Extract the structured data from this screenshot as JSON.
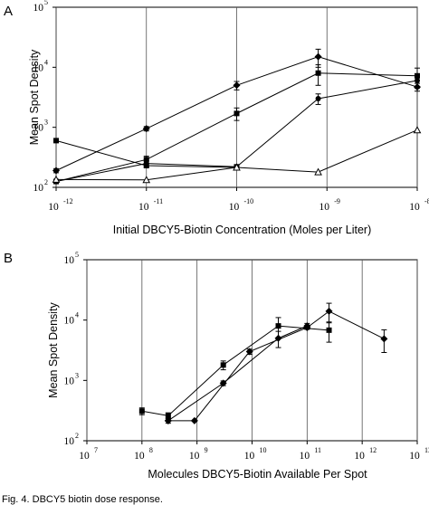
{
  "figure": {
    "caption": "Fig. 4. DBCY5 biotin dose response."
  },
  "chart_data": [
    {
      "panel": "A",
      "type": "line",
      "xlabel": "Initial DBCY5-Biotin Concentration (Moles per Liter)",
      "ylabel": "Mean Spot Density",
      "xscale": "log",
      "yscale": "log",
      "xlim": [
        1e-12,
        1e-08
      ],
      "ylim": [
        100,
        100000
      ],
      "x_ticks": [
        {
          "base": "10",
          "exp": "-12",
          "value": 1e-12
        },
        {
          "base": "10",
          "exp": "-11",
          "value": 1e-11
        },
        {
          "base": "10",
          "exp": "-10",
          "value": 1e-10
        },
        {
          "base": "10",
          "exp": "-9",
          "value": 1e-09
        },
        {
          "base": "10",
          "exp": "-8",
          "value": 1e-08
        }
      ],
      "y_ticks": [
        {
          "base": "10",
          "exp": "2",
          "value": 100
        },
        {
          "base": "10",
          "exp": "3",
          "value": 1000
        },
        {
          "base": "10",
          "exp": "4",
          "value": 10000
        },
        {
          "base": "10",
          "exp": "5",
          "value": 100000
        }
      ],
      "grid": "vertical lines at each decade",
      "series": [
        {
          "marker": "diamond",
          "points": [
            {
              "x": 1e-12,
              "y": 190,
              "err": 15
            },
            {
              "x": 1e-11,
              "y": 950,
              "err": 80
            },
            {
              "x": 1e-10,
              "y": 5000,
              "err": 800
            },
            {
              "x": 8e-10,
              "y": 15000,
              "err": 5000
            },
            {
              "x": 1e-08,
              "y": 4700,
              "err": 700
            }
          ]
        },
        {
          "marker": "square",
          "points": [
            {
              "x": 1e-12,
              "y": 125,
              "err": 10
            },
            {
              "x": 1e-11,
              "y": 290,
              "err": 40
            },
            {
              "x": 1e-10,
              "y": 1700,
              "err": 400
            },
            {
              "x": 8e-10,
              "y": 8000,
              "err": 3000
            },
            {
              "x": 1e-08,
              "y": 7200,
              "err": 2500
            }
          ]
        },
        {
          "marker": "circle",
          "points": [
            {
              "x": 1e-12,
              "y": 125,
              "err": 10
            },
            {
              "x": 1e-11,
              "y": 250,
              "err": 30
            },
            {
              "x": 1e-10,
              "y": 220,
              "err": 20
            },
            {
              "x": 8e-10,
              "y": 3000,
              "err": 600
            },
            {
              "x": 1e-08,
              "y": 6000,
              "err": 1500
            }
          ]
        },
        {
          "marker": "square",
          "points": [
            {
              "x": 1e-12,
              "y": 600,
              "err": 0
            },
            {
              "x": 1e-11,
              "y": 230,
              "err": 0
            },
            {
              "x": 1e-10,
              "y": 215,
              "err": 0
            }
          ]
        },
        {
          "marker": "triangle",
          "points": [
            {
              "x": 1e-12,
              "y": 135,
              "err": 0
            },
            {
              "x": 1e-11,
              "y": 133,
              "err": 0
            },
            {
              "x": 1e-10,
              "y": 215,
              "err": 0
            },
            {
              "x": 8e-10,
              "y": 180,
              "err": 0
            },
            {
              "x": 1e-08,
              "y": 900,
              "err": 0
            }
          ]
        }
      ]
    },
    {
      "panel": "B",
      "type": "line",
      "xlabel": "Molecules DBCY5-Biotin Available Per Spot",
      "ylabel": "Mean Spot Density",
      "xscale": "log",
      "yscale": "log",
      "xlim": [
        10000000.0,
        10000000000000.0
      ],
      "ylim": [
        100,
        100000
      ],
      "x_ticks": [
        {
          "base": "10",
          "exp": "7",
          "value": 10000000.0
        },
        {
          "base": "10",
          "exp": "8",
          "value": 100000000.0
        },
        {
          "base": "10",
          "exp": "9",
          "value": 1000000000.0
        },
        {
          "base": "10",
          "exp": "10",
          "value": 10000000000.0
        },
        {
          "base": "10",
          "exp": "11",
          "value": 100000000000.0
        },
        {
          "base": "10",
          "exp": "12",
          "value": 1000000000000.0
        },
        {
          "base": "10",
          "exp": "13",
          "value": 10000000000000.0
        }
      ],
      "y_ticks": [
        {
          "base": "10",
          "exp": "2",
          "value": 100
        },
        {
          "base": "10",
          "exp": "3",
          "value": 1000
        },
        {
          "base": "10",
          "exp": "4",
          "value": 10000
        },
        {
          "base": "10",
          "exp": "5",
          "value": 100000
        }
      ],
      "grid": "vertical lines at each decade",
      "series": [
        {
          "marker": "square",
          "points": [
            {
              "x": 100000000.0,
              "y": 310,
              "err": 40
            },
            {
              "x": 300000000.0,
              "y": 260,
              "err": 30
            },
            {
              "x": 3000000000.0,
              "y": 1800,
              "err": 300
            },
            {
              "x": 30000000000.0,
              "y": 8000,
              "err": 3000
            },
            {
              "x": 250000000000.0,
              "y": 6800,
              "err": 2500
            }
          ]
        },
        {
          "marker": "diamond",
          "points": [
            {
              "x": 300000000.0,
              "y": 215,
              "err": 20
            },
            {
              "x": 900000000.0,
              "y": 215,
              "err": 0
            },
            {
              "x": 9000000000.0,
              "y": 3000,
              "err": 300
            },
            {
              "x": 100000000000.0,
              "y": 7500,
              "err": 500
            },
            {
              "x": 250000000000.0,
              "y": 14000,
              "err": 5000
            },
            {
              "x": 2500000000000.0,
              "y": 4900,
              "err": 2000
            }
          ]
        },
        {
          "marker": "diamond",
          "points": [
            {
              "x": 300000000.0,
              "y": 215,
              "err": 0
            },
            {
              "x": 3000000000.0,
              "y": 900,
              "err": 80
            },
            {
              "x": 30000000000.0,
              "y": 5000,
              "err": 1500
            },
            {
              "x": 100000000000.0,
              "y": 8000,
              "err": 800
            }
          ]
        }
      ]
    }
  ]
}
